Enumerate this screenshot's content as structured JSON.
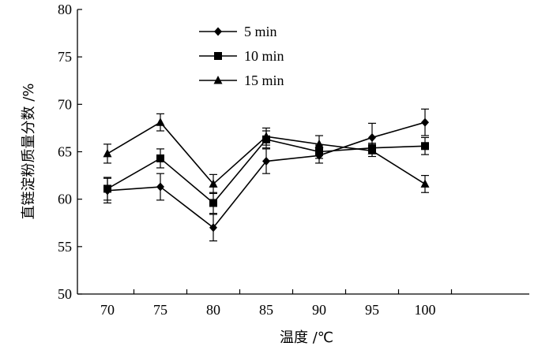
{
  "chart_data": {
    "type": "line",
    "title": "",
    "xlabel": "温度 /℃",
    "ylabel": "直链淀粉质量分数 /%",
    "categories": [
      "70",
      "75",
      "80",
      "85",
      "90",
      "95",
      "100"
    ],
    "ylim": [
      50,
      80
    ],
    "yticks": [
      "50",
      "55",
      "60",
      "65",
      "70",
      "75",
      "80"
    ],
    "grid": false,
    "legend_position": "top-left",
    "series": [
      {
        "name": "5 min",
        "marker": "diamond",
        "values": [
          60.9,
          61.3,
          57.0,
          64.0,
          64.6,
          66.5,
          68.1
        ],
        "errors": [
          1.3,
          1.4,
          1.4,
          1.3,
          0.8,
          1.5,
          1.4
        ]
      },
      {
        "name": "10 min",
        "marker": "square",
        "values": [
          61.1,
          64.3,
          59.6,
          66.3,
          65.0,
          65.4,
          65.6
        ],
        "errors": [
          1.2,
          1.0,
          1.1,
          0.9,
          0.7,
          0.5,
          0.9
        ]
      },
      {
        "name": "15 min",
        "marker": "triangle",
        "values": [
          64.8,
          68.1,
          61.6,
          66.6,
          65.8,
          65.1,
          61.6
        ],
        "errors": [
          1.0,
          0.9,
          1.0,
          0.9,
          0.9,
          0.6,
          0.9
        ]
      }
    ]
  }
}
